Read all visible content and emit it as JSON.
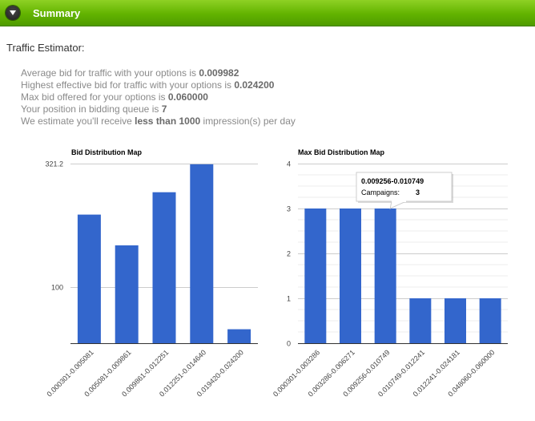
{
  "header": {
    "title": "Summary",
    "toggle_icon": "chevron-down-icon",
    "accent": "#62b300"
  },
  "section_title": "Traffic Estimator:",
  "stats": {
    "avg_prefix": "Average bid for traffic with your options is ",
    "avg_value": "0.009982",
    "highest_prefix": "Highest effective bid for traffic with your options is ",
    "highest_value": "0.024200",
    "max_prefix": "Max bid offered for your options is ",
    "max_value": "0.060000",
    "position_prefix": "Your position in bidding queue is ",
    "position_value": "7",
    "estimate_prefix": "We estimate you'll receive ",
    "estimate_value": "less than 1000",
    "estimate_suffix": " impression(s) per day"
  },
  "chart_data": [
    {
      "type": "bar",
      "title": "Bid Distribution Map",
      "categories": [
        "0.000301-0.005081",
        "0.005081-0.009861",
        "0.009861-0.012251",
        "0.012251-0.014640",
        "0.019420-0.024200"
      ],
      "values": [
        230,
        175,
        270,
        320,
        25
      ],
      "yticks": [
        "321.2",
        "100"
      ],
      "ytick_values": [
        321.2,
        100
      ],
      "ylim": [
        0,
        321.2
      ],
      "grid": true,
      "bar_color": "#3366cc"
    },
    {
      "type": "bar",
      "title": "Max Bid Distribution Map",
      "categories": [
        "0.000301-0.003286",
        "0.003286-0.006271",
        "0.009256-0.010749",
        "0.010749-0.012241",
        "0.012241-0.024181",
        "0.048060-0.060000"
      ],
      "values": [
        3,
        3,
        3,
        1,
        1,
        1
      ],
      "yticks": [
        "0",
        "1",
        "2",
        "3",
        "4"
      ],
      "ytick_values": [
        0,
        1,
        2,
        3,
        4
      ],
      "ylim": [
        0,
        4
      ],
      "grid": true,
      "bar_color": "#3366cc",
      "tooltip": {
        "range": "0.009256-0.010749",
        "label": "Campaigns:",
        "value": "3"
      }
    }
  ]
}
